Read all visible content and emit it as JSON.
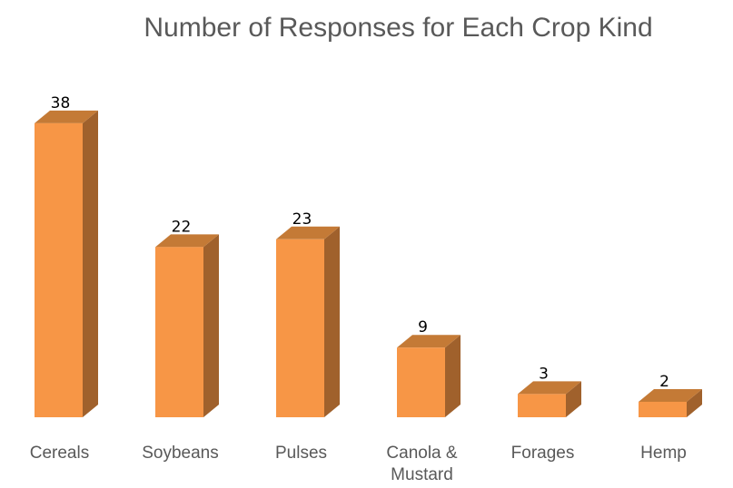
{
  "chart_data": {
    "type": "bar",
    "title": "Number of Responses for Each Crop Kind",
    "categories": [
      "Cereals",
      "Soybeans",
      "Pulses",
      "Canola & Mustard",
      "Forages",
      "Hemp"
    ],
    "category_lines": [
      [
        "Cereals"
      ],
      [
        "Soybeans"
      ],
      [
        "Pulses"
      ],
      [
        "Canola &",
        "Mustard"
      ],
      [
        "Forages"
      ],
      [
        "Hemp"
      ]
    ],
    "values": [
      38,
      22,
      23,
      9,
      3,
      2
    ],
    "xlabel": "",
    "ylabel": "",
    "grid": false,
    "legend": "none",
    "style": "3d-column"
  },
  "colors": {
    "front": "#F79646",
    "side": "#A0612C",
    "top": "#C47A36",
    "title": "#595959",
    "axis_text": "#595959"
  }
}
